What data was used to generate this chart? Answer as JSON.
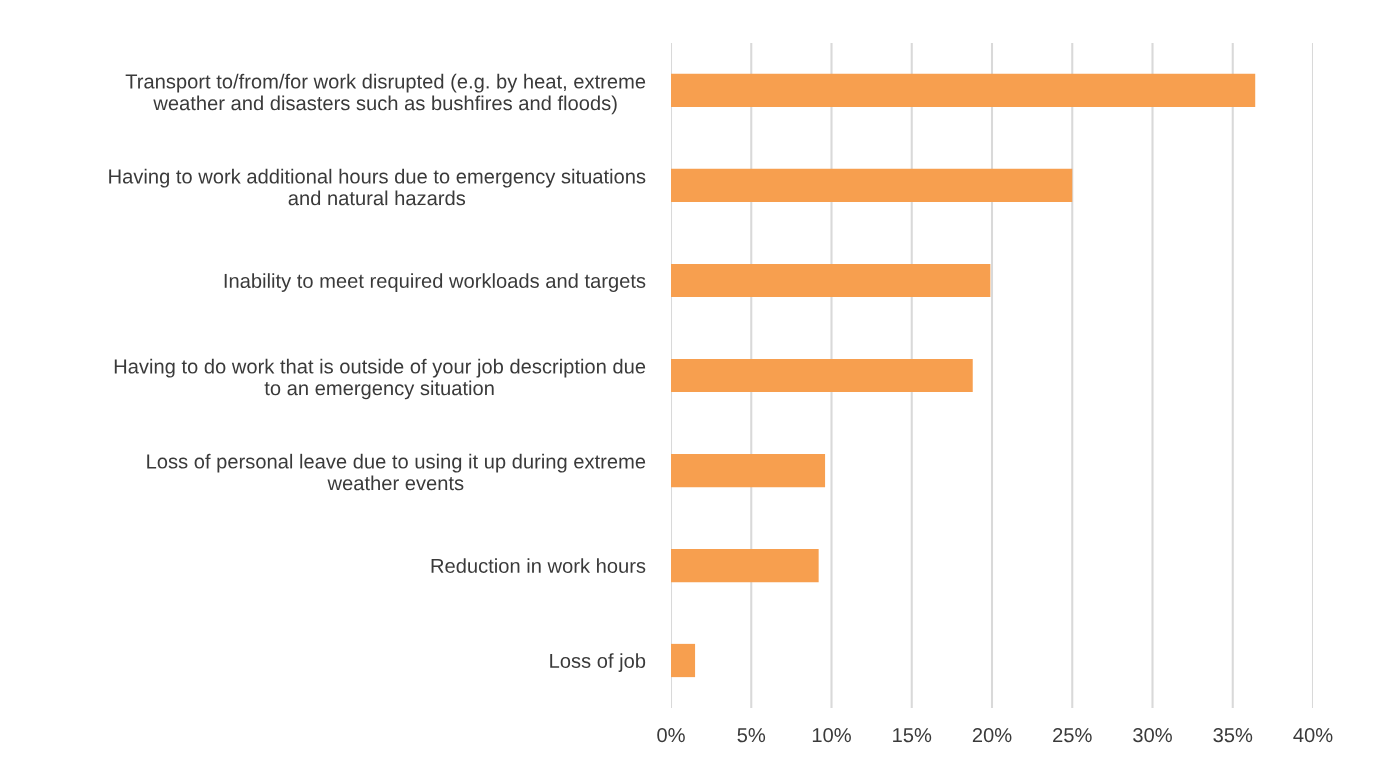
{
  "chart_data": {
    "type": "bar",
    "orientation": "horizontal",
    "categories": [
      "Transport to/from/for work disrupted (e.g. by heat, extreme\nweather and disasters such as bushfires and floods)",
      "Having to work additional hours due to emergency situations\nand natural hazards",
      "Inability to meet required workloads and targets",
      "Having to do work that is outside of your job description due\nto an emergency situation",
      "Loss of personal leave due to using it up during extreme\nweather events",
      "Reduction in work hours",
      "Loss of job"
    ],
    "values": [
      36.4,
      25.0,
      19.9,
      18.8,
      9.6,
      9.2,
      1.5
    ],
    "color": "#f79f4f",
    "xlim": [
      0,
      40
    ],
    "xticks": [
      {
        "value": 0,
        "label": "0%"
      },
      {
        "value": 5,
        "label": "5%"
      },
      {
        "value": 10,
        "label": "10%"
      },
      {
        "value": 15,
        "label": "15%"
      },
      {
        "value": 20,
        "label": "20%"
      },
      {
        "value": 25,
        "label": "25%"
      },
      {
        "value": 30,
        "label": "30%"
      },
      {
        "value": 35,
        "label": "35%"
      },
      {
        "value": 40,
        "label": "40%"
      }
    ],
    "grid": "x",
    "legend": false
  }
}
